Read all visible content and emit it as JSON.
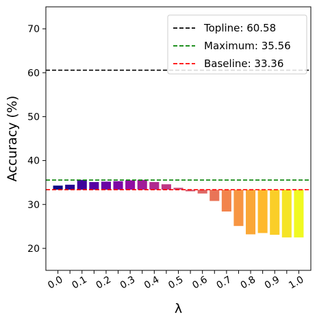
{
  "chart_data": {
    "type": "bar",
    "title": "",
    "xlabel": "λ",
    "ylabel": "Accuracy (%)",
    "x": [
      0.0,
      0.05,
      0.1,
      0.15,
      0.2,
      0.25,
      0.3,
      0.35,
      0.4,
      0.45,
      0.5,
      0.55,
      0.6,
      0.65,
      0.7,
      0.75,
      0.8,
      0.85,
      0.9,
      0.95,
      1.0
    ],
    "values": [
      34.3,
      34.5,
      35.6,
      35.1,
      35.2,
      35.3,
      35.5,
      35.6,
      35.1,
      34.6,
      33.8,
      33.0,
      32.5,
      30.8,
      28.4,
      25.1,
      23.2,
      23.5,
      23.1,
      22.5,
      22.5
    ],
    "xtick_labels": [
      "0.0",
      "0.1",
      "0.2",
      "0.3",
      "0.4",
      "0.5",
      "0.6",
      "0.7",
      "0.8",
      "0.9",
      "1.0"
    ],
    "ylim": [
      15,
      75
    ],
    "yticks": [
      20,
      30,
      40,
      50,
      60,
      70
    ],
    "bar_colormap": "plasma",
    "grid": false,
    "legend_position": "top-right",
    "reference_lines": [
      {
        "label": "Topline: 60.58",
        "value": 60.58,
        "color": "#000000",
        "style": "dashed"
      },
      {
        "label": "Maximum: 35.56",
        "value": 35.56,
        "color": "#008000",
        "style": "dashed"
      },
      {
        "label": "Baseline: 33.36",
        "value": 33.36,
        "color": "#ff0000",
        "style": "dashed"
      }
    ]
  }
}
